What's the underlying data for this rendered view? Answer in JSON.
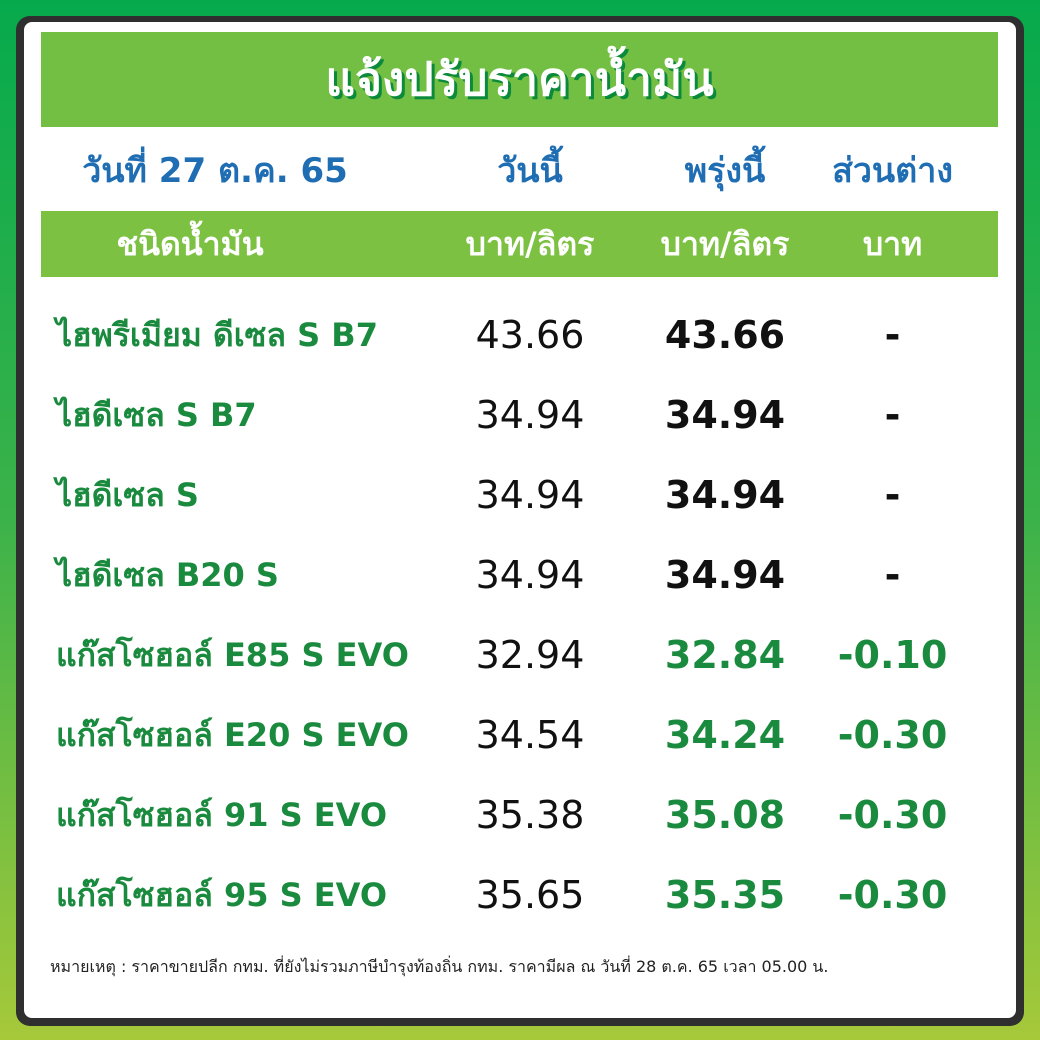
{
  "title": "แจ้งปรับราคาน้ำมัน",
  "header": {
    "date": "วันที่ 27 ต.ค. 65",
    "today": "วันนี้",
    "tomorrow": "พรุ่งนี้",
    "difference": "ส่วนต่าง"
  },
  "columns": {
    "fuel_type": "ชนิดน้ำมัน",
    "today_unit": "บาท/ลิตร",
    "tomorrow_unit": "บาท/ลิตร",
    "diff_unit": "บาท"
  },
  "rows": [
    {
      "name": "ไฮพรีเมียม ดีเซล S B7",
      "today": "43.66",
      "tomorrow": "43.66",
      "diff": "-"
    },
    {
      "name": "ไฮดีเซล S B7",
      "today": "34.94",
      "tomorrow": "34.94",
      "diff": "-"
    },
    {
      "name": "ไฮดีเซล S",
      "today": "34.94",
      "tomorrow": "34.94",
      "diff": "-"
    },
    {
      "name": "ไฮดีเซล B20 S",
      "today": "34.94",
      "tomorrow": "34.94",
      "diff": "-"
    },
    {
      "name": "แก๊สโซฮอล์ E85 S EVO",
      "today": "32.94",
      "tomorrow": "32.84",
      "diff": "-0.10"
    },
    {
      "name": "แก๊สโซฮอล์ E20 S EVO",
      "today": "34.54",
      "tomorrow": "34.24",
      "diff": "-0.30"
    },
    {
      "name": "แก๊สโซฮอล์ 91 S EVO",
      "today": "35.38",
      "tomorrow": "35.08",
      "diff": "-0.30"
    },
    {
      "name": "แก๊สโซฮอล์ 95 S EVO",
      "today": "35.65",
      "tomorrow": "35.35",
      "diff": "-0.30"
    }
  ],
  "note": "หมายเหตุ :  ราคาขายปลีก กทม. ที่ยังไม่รวมภาษีบำรุงท้องถิ่น กทม.  ราคามีผล ณ วันที่ 28 ต.ค. 65 เวลา 05.00 น.",
  "colors": {
    "changed": "#1a8a3e",
    "unchanged": "#111111",
    "header_blue": "#1f6db3",
    "bar_green": "#72bf44"
  }
}
